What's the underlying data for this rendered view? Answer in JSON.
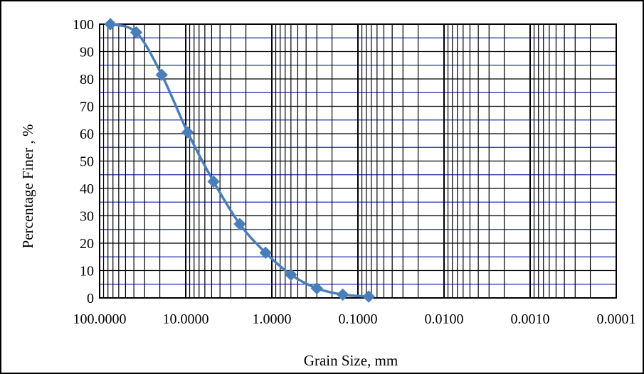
{
  "chart_data": {
    "type": "scatter",
    "title": "",
    "xlabel": "Grain Size, mm",
    "ylabel": "Percentage Finer , %",
    "x_scale": "log",
    "x_reversed": true,
    "xlim": [
      100,
      0.0001
    ],
    "ylim": [
      0,
      100
    ],
    "y_ticks": [
      0,
      10,
      20,
      30,
      40,
      50,
      60,
      70,
      80,
      90,
      100
    ],
    "y_tick_labels": [
      "0",
      "10",
      "20",
      "30",
      "40",
      "50",
      "60",
      "70",
      "80",
      "90",
      "100"
    ],
    "x_ticks": [
      100,
      10,
      1,
      0.1,
      0.01,
      0.001,
      0.0001
    ],
    "x_tick_labels": [
      "100.0000",
      "10.0000",
      "1.0000",
      "0.1000",
      "0.0100",
      "0.0010",
      "0.0001"
    ],
    "grid": true,
    "colors": {
      "series": "#4a7ebb",
      "major_grid": "#000000",
      "minor_h_grid": "#1f2fa8"
    },
    "series": [
      {
        "marker": "diamond",
        "x": [
          75,
          37.5,
          19,
          9.5,
          4.75,
          2.36,
          1.18,
          0.6,
          0.3,
          0.15,
          0.075
        ],
        "y": [
          100,
          97,
          81.5,
          60.5,
          42.5,
          27,
          16.5,
          8.5,
          3.5,
          1.2,
          0.5
        ]
      }
    ]
  }
}
